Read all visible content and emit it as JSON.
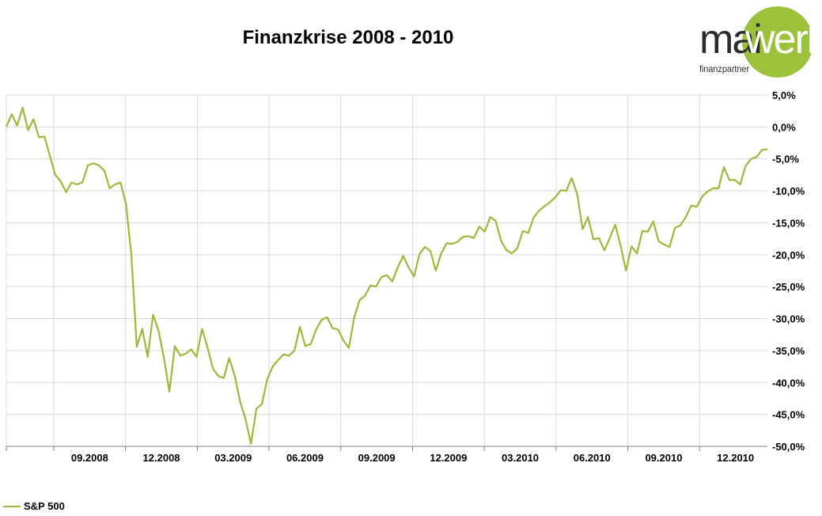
{
  "title": "Finanzkrise 2008 - 2010",
  "logo": {
    "text_a": "mai",
    "text_b": "werk",
    "subtitle": "finanzpartner",
    "accent": "#9cc23c"
  },
  "colors": {
    "line": "#9cb93a",
    "grid": "#d9d9d9",
    "axis": "#808080"
  },
  "chart_data": {
    "type": "line",
    "title": "Finanzkrise 2008 - 2010",
    "ylim": [
      -50,
      5
    ],
    "yticks": [
      5,
      0,
      -5,
      -10,
      -15,
      -20,
      -25,
      -30,
      -35,
      -40,
      -45,
      -50
    ],
    "ytick_labels": [
      "5,0%",
      "0,0%",
      "-5,0%",
      "-10,0%",
      "-15,0%",
      "-20,0%",
      "-25,0%",
      "-30,0%",
      "-35,0%",
      "-40,0%",
      "-45,0%",
      "-50,0%"
    ],
    "xticks": [
      "09.2008",
      "12.2008",
      "03.2009",
      "06.2009",
      "09.2009",
      "12.2009",
      "03.2010",
      "06.2010",
      "09.2010",
      "12.2010"
    ],
    "grid": true,
    "legend_position": "bottom-left",
    "series": [
      {
        "name": "S&P 500",
        "values": [
          0.0,
          2.0,
          0.2,
          3.0,
          -0.5,
          1.2,
          -1.6,
          -1.5,
          -4.5,
          -7.5,
          -8.5,
          -10.2,
          -8.7,
          -9.0,
          -8.7,
          -6.0,
          -5.7,
          -6.0,
          -6.8,
          -9.6,
          -9.0,
          -8.7,
          -12.0,
          -20.0,
          -34.4,
          -31.6,
          -36.0,
          -29.4,
          -31.9,
          -36.2,
          -41.4,
          -34.3,
          -35.8,
          -35.5,
          -34.8,
          -36.0,
          -31.6,
          -34.5,
          -37.8,
          -39.0,
          -39.3,
          -36.2,
          -38.9,
          -43.0,
          -45.7,
          -49.6,
          -44.1,
          -43.4,
          -39.5,
          -37.5,
          -36.5,
          -35.6,
          -35.8,
          -35.0,
          -31.3,
          -34.3,
          -34.0,
          -31.7,
          -30.2,
          -29.8,
          -31.5,
          -31.7,
          -33.4,
          -34.6,
          -29.8,
          -27.1,
          -26.4,
          -24.8,
          -25.0,
          -23.5,
          -23.2,
          -24.2,
          -22.0,
          -20.2,
          -22.0,
          -23.4,
          -19.9,
          -18.8,
          -19.4,
          -22.5,
          -19.8,
          -18.2,
          -18.3,
          -18.0,
          -17.2,
          -17.1,
          -17.4,
          -15.6,
          -16.4,
          -14.1,
          -14.7,
          -17.8,
          -19.3,
          -19.8,
          -19.0,
          -16.3,
          -16.6,
          -14.2,
          -13.1,
          -12.4,
          -11.8,
          -11.0,
          -9.9,
          -10.0,
          -8.0,
          -10.5,
          -16.0,
          -14.1,
          -17.6,
          -17.4,
          -19.3,
          -17.4,
          -15.3,
          -18.6,
          -22.5,
          -18.7,
          -19.8,
          -16.3,
          -16.4,
          -14.8,
          -17.9,
          -18.4,
          -18.8,
          -15.8,
          -15.4,
          -14.1,
          -12.3,
          -12.5,
          -10.9,
          -10.1,
          -9.6,
          -9.6,
          -6.3,
          -8.3,
          -8.3,
          -9.0,
          -6.1,
          -5.0,
          -4.7,
          -3.6,
          -3.5
        ]
      }
    ]
  },
  "legend": {
    "label": "S&P 500"
  }
}
